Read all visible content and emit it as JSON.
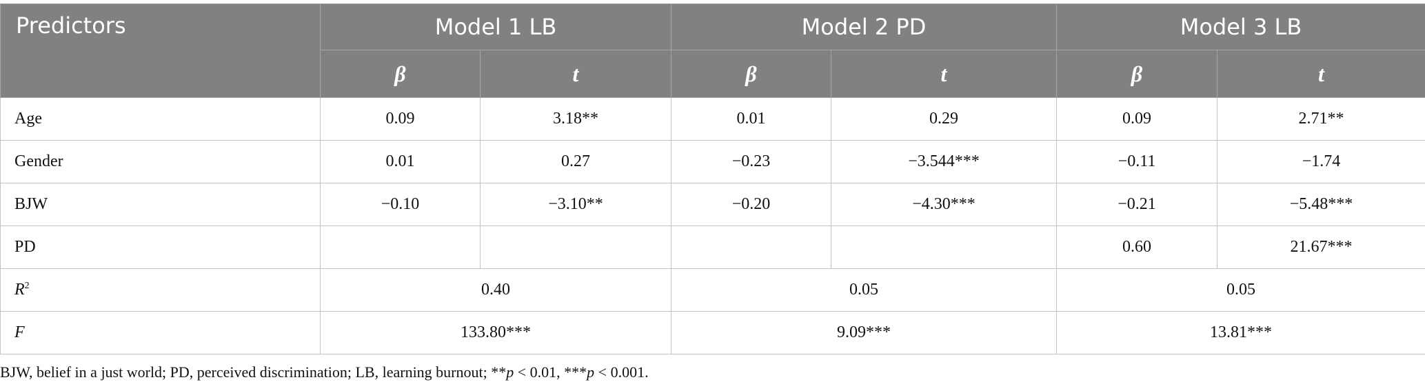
{
  "table": {
    "header": {
      "predictors": "Predictors",
      "models": [
        "Model 1 LB",
        "Model 2 PD",
        "Model 3 LB"
      ],
      "sub": [
        "β",
        "t"
      ]
    },
    "rows": [
      {
        "label": "Age",
        "cells": [
          "0.09",
          "3.18**",
          "0.01",
          "0.29",
          "0.09",
          "2.71**"
        ]
      },
      {
        "label": "Gender",
        "cells": [
          "0.01",
          "0.27",
          "−0.23",
          "−3.544***",
          "−0.11",
          "−1.74"
        ]
      },
      {
        "label": "BJW",
        "cells": [
          "−0.10",
          "−3.10**",
          "−0.20",
          "−4.30***",
          "−0.21",
          "−5.48***"
        ]
      },
      {
        "label": "PD",
        "cells": [
          null,
          null,
          null,
          null,
          "0.60",
          "21.67***"
        ]
      }
    ],
    "summary": [
      {
        "label": {
          "text": "R",
          "sup": "2"
        },
        "cells": [
          "0.40",
          "0.05",
          "0.05"
        ]
      },
      {
        "label": {
          "text": "F"
        },
        "cells": [
          "133.80***",
          "9.09***",
          "13.81***"
        ]
      }
    ]
  },
  "footnote": [
    "BJW, belief in a just world; PD, perceived discrimination; LB, learning burnout; **",
    "p",
    " < 0.01, ***",
    "p",
    " < 0.001."
  ]
}
